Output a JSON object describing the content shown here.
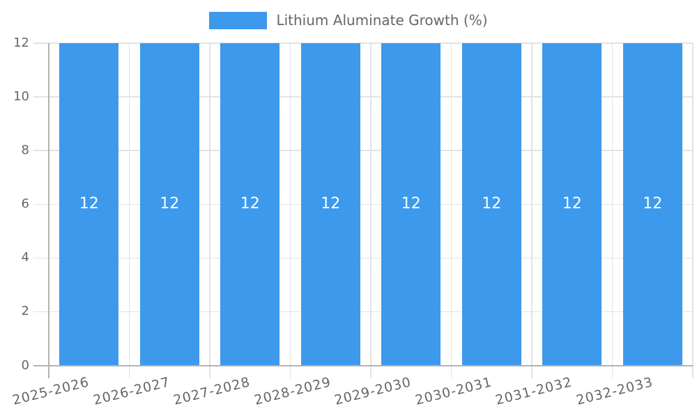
{
  "chart_data": {
    "type": "bar",
    "title": "",
    "legend_label": "Lithium Aluminate Growth (%)",
    "legend_position": "top",
    "categories": [
      "2025-2026",
      "2026-2027",
      "2027-2028",
      "2028-2029",
      "2029-2030",
      "2030-2031",
      "2031-2032",
      "2032-2033"
    ],
    "values": [
      12,
      12,
      12,
      12,
      12,
      12,
      12,
      12
    ],
    "bar_labels": [
      "12",
      "12",
      "12",
      "12",
      "12",
      "12",
      "12",
      "12"
    ],
    "xlabel": "",
    "ylabel": "",
    "ylim": [
      0,
      12
    ],
    "yticks": [
      0,
      2,
      4,
      6,
      8,
      10,
      12
    ],
    "grid": true,
    "x_tick_rotation_deg": -14
  },
  "colors": {
    "bar": "#3D99EC",
    "grid": "#e3e3e3",
    "axis": "#b3b3b3",
    "tick_text": "#666666",
    "legend_text": "#666666",
    "bar_label_text": "#ffffff",
    "background": "#ffffff"
  }
}
